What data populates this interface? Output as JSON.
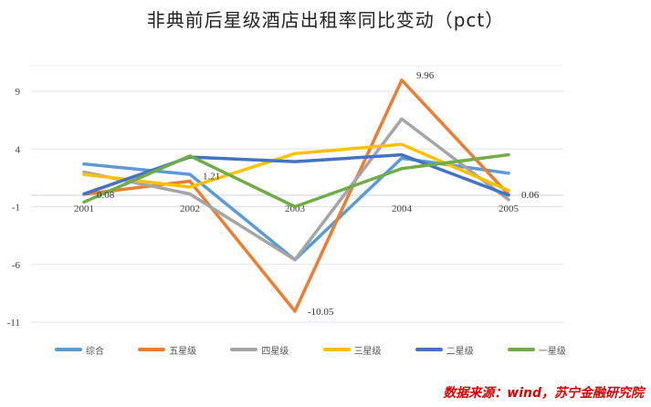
{
  "chart_data": {
    "type": "line",
    "title": "非典前后星级酒店出租率同比变动（pct）",
    "categories": [
      "2001",
      "2002",
      "2003",
      "2004",
      "2005"
    ],
    "ylim": [
      -11,
      9
    ],
    "yticks": [
      "9",
      "4",
      "-1",
      "-6",
      "-11"
    ],
    "ytick_values": [
      9,
      4,
      -1,
      -6,
      -11
    ],
    "grid": true,
    "legend_position": "bottom",
    "series": [
      {
        "name": "综合",
        "color": "#5B9BD5",
        "values": [
          2.7,
          1.8,
          -5.6,
          3.2,
          1.9
        ]
      },
      {
        "name": "五星级",
        "color": "#ED7D31",
        "values": [
          0.08,
          1.21,
          -10.05,
          9.96,
          0.06
        ]
      },
      {
        "name": "四星级",
        "color": "#A5A5A5",
        "values": [
          2.0,
          0.1,
          -5.6,
          6.6,
          -0.4
        ]
      },
      {
        "name": "三星级",
        "color": "#FFC000",
        "values": [
          1.8,
          0.7,
          3.6,
          4.4,
          0.4
        ]
      },
      {
        "name": "二星级",
        "color": "#4472C4",
        "values": [
          0.1,
          3.3,
          2.9,
          3.5,
          0.0
        ]
      },
      {
        "name": "一星级",
        "color": "#70AD47",
        "values": [
          -0.6,
          3.4,
          -1.0,
          2.3,
          3.5
        ]
      }
    ],
    "data_labels": [
      {
        "series": "五星级",
        "index": 0,
        "text": "0.08",
        "dx": 14,
        "dy": 4
      },
      {
        "series": "五星级",
        "index": 1,
        "text": "1.21",
        "dx": 14,
        "dy": -2
      },
      {
        "series": "五星级",
        "index": 2,
        "text": "-10.05",
        "dx": 14,
        "dy": 4
      },
      {
        "series": "五星级",
        "index": 3,
        "text": "9.96",
        "dx": 16,
        "dy": -2
      },
      {
        "series": "五星级",
        "index": 4,
        "text": "0.06",
        "dx": 14,
        "dy": 4
      }
    ]
  },
  "source_note": "数据来源：wind，苏宁金融研究院"
}
